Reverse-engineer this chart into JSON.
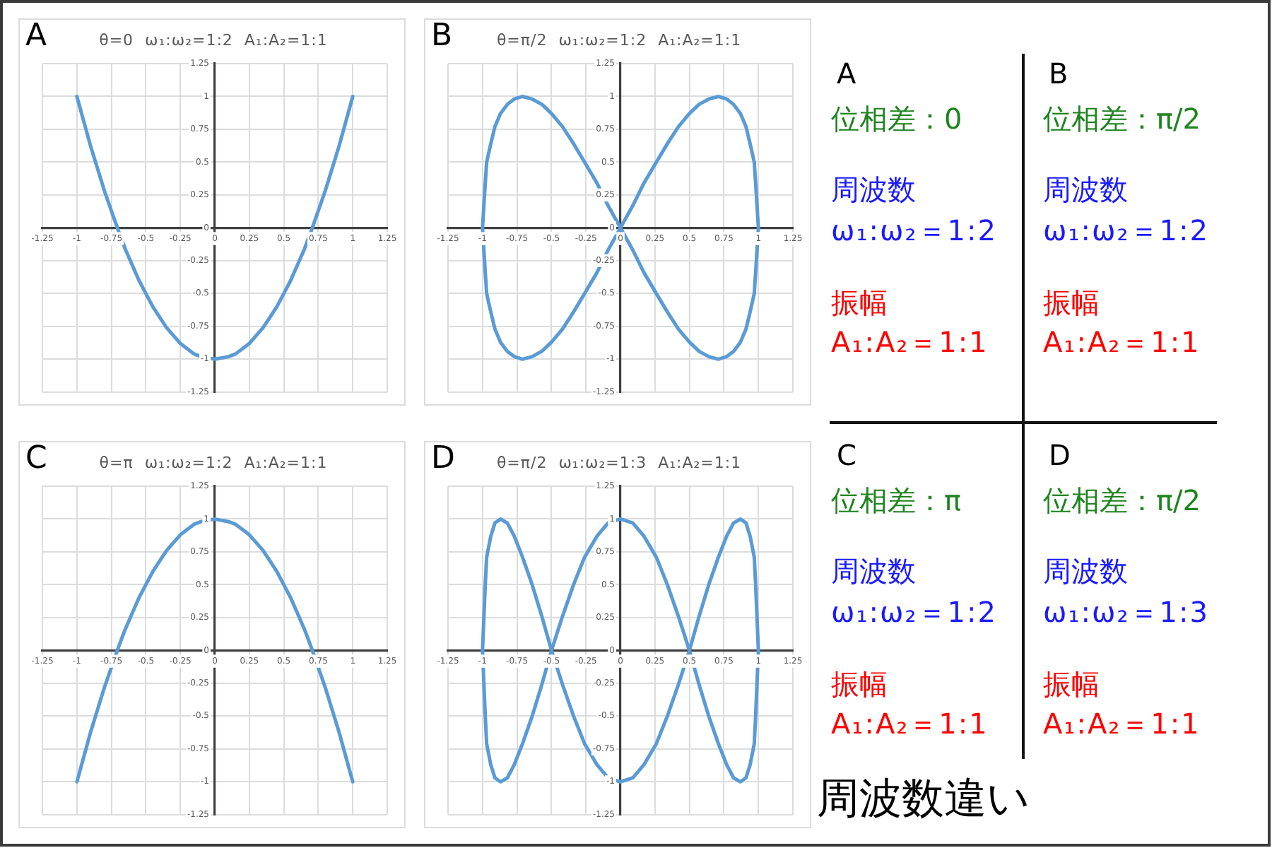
{
  "chart_data": [
    {
      "type": "line",
      "title": "A",
      "subtitle": "θ=0  ω₁:ω₂=1:2  A₁:A₂=1:1",
      "color": "#5b9bd5",
      "xlim": [
        -1.25,
        1.25
      ],
      "ylim": [
        -1.25,
        1.25
      ],
      "xticks": [
        -1.25,
        -1,
        -0.75,
        -0.5,
        -0.25,
        0,
        0.25,
        0.5,
        0.75,
        1,
        1.25
      ],
      "yticks": [
        -1.25,
        -1,
        -0.75,
        -0.5,
        -0.25,
        0,
        0.25,
        0.5,
        0.75,
        1,
        1.25
      ],
      "grid": true,
      "x": [
        -1,
        -0.95,
        -0.9,
        -0.85,
        -0.8,
        -0.75,
        -0.7,
        -0.65,
        -0.6,
        -0.55,
        -0.5,
        -0.45,
        -0.4,
        -0.35,
        -0.3,
        -0.25,
        -0.2,
        -0.15,
        -0.1,
        -0.05,
        0,
        0.05,
        0.1,
        0.15,
        0.2,
        0.25,
        0.3,
        0.35,
        0.4,
        0.45,
        0.5,
        0.55,
        0.6,
        0.65,
        0.7,
        0.75,
        0.8,
        0.85,
        0.9,
        0.95,
        1
      ],
      "values": [
        1,
        0.81,
        0.62,
        0.45,
        0.28,
        0.13,
        -0.02,
        -0.16,
        -0.28,
        -0.4,
        -0.5,
        -0.6,
        -0.68,
        -0.76,
        -0.82,
        -0.88,
        -0.92,
        -0.96,
        -0.98,
        -0.99,
        -1,
        -0.99,
        -0.98,
        -0.96,
        -0.92,
        -0.88,
        -0.82,
        -0.76,
        -0.68,
        -0.6,
        -0.5,
        -0.4,
        -0.28,
        -0.16,
        -0.02,
        0.13,
        0.28,
        0.45,
        0.62,
        0.81,
        1
      ]
    },
    {
      "type": "line",
      "title": "B",
      "subtitle": "θ=π/2  ω₁:ω₂=1:2  A₁:A₂=1:1",
      "xlim": [
        -1.25,
        1.25
      ],
      "ylim": [
        -1.25,
        1.25
      ],
      "xticks": [
        -1.25,
        -1,
        -0.75,
        -0.5,
        -0.25,
        0,
        0.25,
        0.5,
        0.75,
        1,
        1.25
      ],
      "yticks": [
        -1.25,
        -1,
        -0.75,
        -0.5,
        -0.25,
        0,
        0.25,
        0.5,
        0.75,
        1,
        1.25
      ],
      "grid": true,
      "series": [
        {
          "color": "#5b9bd5",
          "x": [
            0,
            0.09,
            0.17,
            0.26,
            0.34,
            0.42,
            0.5,
            0.57,
            0.64,
            0.71,
            0.77,
            0.82,
            0.87,
            0.91,
            0.94,
            0.97,
            0.98,
            1
          ],
          "values": [
            0,
            0.17,
            0.34,
            0.5,
            0.64,
            0.77,
            0.87,
            0.94,
            0.98,
            1,
            0.98,
            0.94,
            0.87,
            0.77,
            0.64,
            0.5,
            0.34,
            0
          ]
        },
        {
          "color": "#5b9bd5",
          "x": [
            0,
            0.09,
            0.17,
            0.26,
            0.34,
            0.42,
            0.5,
            0.57,
            0.64,
            0.71,
            0.77,
            0.82,
            0.87,
            0.91,
            0.94,
            0.97,
            0.98,
            1
          ],
          "values": [
            0,
            -0.17,
            -0.34,
            -0.5,
            -0.64,
            -0.77,
            -0.87,
            -0.94,
            -0.98,
            -1,
            -0.98,
            -0.94,
            -0.87,
            -0.77,
            -0.64,
            -0.5,
            -0.34,
            0
          ]
        },
        {
          "color": "#5b9bd5",
          "x": [
            -1,
            -0.98,
            -0.97,
            -0.94,
            -0.91,
            -0.87,
            -0.82,
            -0.77,
            -0.71,
            -0.64,
            -0.57,
            -0.5,
            -0.42,
            -0.34,
            -0.26,
            -0.17,
            -0.09,
            0
          ],
          "values": [
            0,
            0.34,
            0.5,
            0.64,
            0.77,
            0.87,
            0.94,
            0.98,
            1,
            0.98,
            0.94,
            0.87,
            0.77,
            0.64,
            0.5,
            0.34,
            0.17,
            0
          ]
        },
        {
          "color": "#5b9bd5",
          "x": [
            -1,
            -0.98,
            -0.97,
            -0.94,
            -0.91,
            -0.87,
            -0.82,
            -0.77,
            -0.71,
            -0.64,
            -0.57,
            -0.5,
            -0.42,
            -0.34,
            -0.26,
            -0.17,
            -0.09,
            0
          ],
          "values": [
            0,
            -0.34,
            -0.5,
            -0.64,
            -0.77,
            -0.87,
            -0.94,
            -0.98,
            -1,
            -0.98,
            -0.94,
            -0.87,
            -0.77,
            -0.64,
            -0.5,
            -0.34,
            -0.17,
            0
          ]
        }
      ]
    },
    {
      "type": "line",
      "title": "C",
      "subtitle": "θ=π  ω₁:ω₂=1:2  A₁:A₂=1:1",
      "color": "#5b9bd5",
      "xlim": [
        -1.25,
        1.25
      ],
      "ylim": [
        -1.25,
        1.25
      ],
      "xticks": [
        -1.25,
        -1,
        -0.75,
        -0.5,
        -0.25,
        0,
        0.25,
        0.5,
        0.75,
        1,
        1.25
      ],
      "yticks": [
        -1.25,
        -1,
        -0.75,
        -0.5,
        -0.25,
        0,
        0.25,
        0.5,
        0.75,
        1,
        1.25
      ],
      "grid": true,
      "x": [
        -1,
        -0.95,
        -0.9,
        -0.85,
        -0.8,
        -0.75,
        -0.7,
        -0.65,
        -0.6,
        -0.55,
        -0.5,
        -0.45,
        -0.4,
        -0.35,
        -0.3,
        -0.25,
        -0.2,
        -0.15,
        -0.1,
        -0.05,
        0,
        0.05,
        0.1,
        0.15,
        0.2,
        0.25,
        0.3,
        0.35,
        0.4,
        0.45,
        0.5,
        0.55,
        0.6,
        0.65,
        0.7,
        0.75,
        0.8,
        0.85,
        0.9,
        0.95,
        1
      ],
      "values": [
        -1,
        -0.81,
        -0.62,
        -0.45,
        -0.28,
        -0.13,
        0.02,
        0.16,
        0.28,
        0.4,
        0.5,
        0.6,
        0.68,
        0.76,
        0.82,
        0.88,
        0.92,
        0.96,
        0.98,
        0.99,
        1,
        0.99,
        0.98,
        0.96,
        0.92,
        0.88,
        0.82,
        0.76,
        0.68,
        0.6,
        0.5,
        0.4,
        0.28,
        0.16,
        0.02,
        -0.13,
        -0.28,
        -0.45,
        -0.62,
        -0.81,
        -1
      ]
    },
    {
      "type": "line",
      "title": "D",
      "subtitle": "θ=π/2  ω₁:ω₂=1:3  A₁:A₂=1:1",
      "xlim": [
        -1.25,
        1.25
      ],
      "ylim": [
        -1.25,
        1.25
      ],
      "xticks": [
        -1.25,
        -1,
        -0.75,
        -0.5,
        -0.25,
        0,
        0.25,
        0.5,
        0.75,
        1,
        1.25
      ],
      "yticks": [
        -1.25,
        -1,
        -0.75,
        -0.5,
        -0.25,
        0,
        0.25,
        0.5,
        0.75,
        1,
        1.25
      ],
      "grid": true,
      "series": [
        {
          "color": "#5b9bd5",
          "x": [
            0,
            0.09,
            0.17,
            0.26,
            0.34,
            0.42,
            0.5,
            0.57,
            0.64,
            0.71,
            0.77,
            0.82,
            0.87,
            0.91,
            0.94,
            0.97,
            0.98,
            1
          ],
          "values": [
            1,
            0.97,
            0.87,
            0.71,
            0.5,
            0.26,
            0,
            -0.26,
            -0.5,
            -0.71,
            -0.87,
            -0.97,
            -1,
            -0.97,
            -0.87,
            -0.71,
            -0.5,
            0
          ]
        },
        {
          "color": "#5b9bd5",
          "x": [
            0,
            0.09,
            0.17,
            0.26,
            0.34,
            0.42,
            0.5,
            0.57,
            0.64,
            0.71,
            0.77,
            0.82,
            0.87,
            0.91,
            0.94,
            0.97,
            0.98,
            1
          ],
          "values": [
            -1,
            -0.97,
            -0.87,
            -0.71,
            -0.5,
            -0.26,
            0,
            0.26,
            0.5,
            0.71,
            0.87,
            0.97,
            1,
            0.97,
            0.87,
            0.71,
            0.5,
            0
          ]
        },
        {
          "color": "#5b9bd5",
          "x": [
            -1,
            -0.98,
            -0.97,
            -0.94,
            -0.91,
            -0.87,
            -0.82,
            -0.77,
            -0.71,
            -0.64,
            -0.57,
            -0.5,
            -0.42,
            -0.34,
            -0.26,
            -0.17,
            -0.09,
            0
          ],
          "values": [
            0,
            0.5,
            0.71,
            0.87,
            0.97,
            1,
            0.97,
            0.87,
            0.71,
            0.5,
            0.26,
            0,
            -0.26,
            -0.5,
            -0.71,
            -0.87,
            -0.97,
            -1
          ]
        },
        {
          "color": "#5b9bd5",
          "x": [
            -1,
            -0.98,
            -0.97,
            -0.94,
            -0.91,
            -0.87,
            -0.82,
            -0.77,
            -0.71,
            -0.64,
            -0.57,
            -0.5,
            -0.42,
            -0.34,
            -0.26,
            -0.17,
            -0.09,
            0
          ],
          "values": [
            0,
            -0.5,
            -0.71,
            -0.87,
            -0.97,
            -1,
            -0.97,
            -0.87,
            -0.71,
            -0.5,
            -0.26,
            0,
            0.26,
            0.5,
            0.71,
            0.87,
            0.97,
            1
          ]
        }
      ]
    },
    {
      "type": "other",
      "annotations": [
        "A",
        "位相差：0",
        "周波数",
        "ω₁:ω₂＝1:2",
        "振幅",
        "A₁:A₂＝1:1",
        "B",
        "位相差：π/2",
        "周波数",
        "ω₁:ω₂＝1:2",
        "振幅",
        "A₁:A₂＝1:1",
        "C",
        "位相差：π",
        "周波数",
        "ω₁:ω₂＝1:2",
        "振幅",
        "A₁:A₂＝1:1",
        "D",
        "位相差：π/2",
        "周波数",
        "ω₁:ω₂＝1:3",
        "振幅",
        "A₁:A₂＝1:1",
        "周波数違い"
      ],
      "colors": [
        "#000000",
        "#1e841e",
        "#1a1aff",
        "#1a1aff",
        "#ff0000",
        "#ff0000",
        "#000000",
        "#1e841e",
        "#1a1aff",
        "#1a1aff",
        "#ff0000",
        "#ff0000",
        "#000000",
        "#1e841e",
        "#1a1aff",
        "#1a1aff",
        "#ff0000",
        "#ff0000",
        "#000000",
        "#1e841e",
        "#1a1aff",
        "#1a1aff",
        "#ff0000",
        "#ff0000",
        "#000000"
      ]
    }
  ]
}
